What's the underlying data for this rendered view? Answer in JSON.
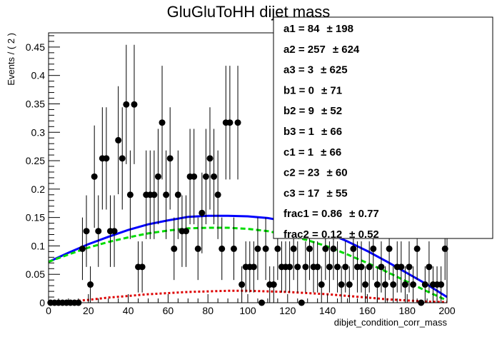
{
  "chart_data": {
    "type": "scatter",
    "title": "GluGluToHH dijet mass",
    "xlabel": "dibjet_condition_corr_mass",
    "ylabel": "Events / ( 2 )",
    "xlim": [
      0,
      200
    ],
    "ylim": [
      0,
      0.475
    ],
    "xticks": [
      0,
      20,
      40,
      60,
      80,
      100,
      120,
      140,
      160,
      180,
      200
    ],
    "yticks": [
      0,
      0.05,
      0.1,
      0.15,
      0.2,
      0.25,
      0.3,
      0.35,
      0.4,
      0.45
    ],
    "x_tick_labels": [
      "0",
      "20",
      "40",
      "60",
      "80",
      "100",
      "120",
      "140",
      "160",
      "180",
      "200"
    ],
    "y_tick_labels": [
      "0",
      "0.05",
      "0.1",
      "0.15",
      "0.2",
      "0.25",
      "0.3",
      "0.35",
      "0.4",
      "0.45"
    ],
    "grid": false,
    "legend": "none",
    "series": [
      {
        "type": "points-with-errors",
        "color": "#000000",
        "x": [
          1,
          3,
          5,
          7,
          9,
          11,
          13,
          15,
          17,
          19,
          21,
          23,
          25,
          27,
          29,
          31,
          33,
          35,
          37,
          39,
          41,
          43,
          45,
          47,
          49,
          51,
          53,
          55,
          57,
          59,
          61,
          63,
          65,
          67,
          69,
          71,
          73,
          75,
          77,
          79,
          81,
          83,
          85,
          87,
          89,
          91,
          93,
          95,
          97,
          99,
          101,
          103,
          105,
          107,
          109,
          111,
          113,
          115,
          117,
          119,
          121,
          123,
          125,
          127,
          129,
          131,
          133,
          135,
          137,
          139,
          141,
          143,
          145,
          147,
          149,
          151,
          153,
          155,
          157,
          159,
          161,
          163,
          165,
          167,
          169,
          171,
          173,
          175,
          177,
          179,
          181,
          183,
          185,
          187,
          189,
          191,
          193,
          195,
          197,
          199
        ],
        "y": [
          0,
          0,
          0,
          0,
          0,
          0,
          0,
          0,
          0.095,
          0.126,
          0.032,
          0.222,
          0.126,
          0.254,
          0.254,
          0.126,
          0.126,
          0.286,
          0.254,
          0.349,
          0.19,
          0.349,
          0.063,
          0.063,
          0.19,
          0.19,
          0.19,
          0.222,
          0.317,
          0.19,
          0.254,
          0.095,
          0.19,
          0.126,
          0.126,
          0.222,
          0.222,
          0.095,
          0.158,
          0.222,
          0.254,
          0.222,
          0.19,
          0.095,
          0.317,
          0.317,
          0.095,
          0.317,
          0.032,
          0.063,
          0.063,
          0.063,
          0.095,
          0.0,
          0.095,
          0.032,
          0.032,
          0.095,
          0.063,
          0.063,
          0.063,
          0.095,
          0.063,
          0.0,
          0.063,
          0.095,
          0.063,
          0.063,
          0.032,
          0.095,
          0.063,
          0.095,
          0.063,
          0.032,
          0.063,
          0.032,
          0.095,
          0.063,
          0.063,
          0.032,
          0.063,
          0.095,
          0.032,
          0.063,
          0.032,
          0.095,
          0.032,
          0.063,
          0.063,
          0.032,
          0.063,
          0.032,
          0.095,
          0.0,
          0.032,
          0.063,
          0.032,
          0.032,
          0.032,
          0.095
        ],
        "err": [
          0,
          0,
          0,
          0,
          0,
          0,
          0,
          0,
          0.055,
          0.063,
          0.032,
          0.09,
          0.063,
          0.09,
          0.09,
          0.063,
          0.063,
          0.095,
          0.09,
          0.105,
          0.078,
          0.105,
          0.045,
          0.045,
          0.078,
          0.078,
          0.078,
          0.084,
          0.1,
          0.078,
          0.09,
          0.055,
          0.078,
          0.063,
          0.063,
          0.084,
          0.084,
          0.055,
          0.071,
          0.084,
          0.09,
          0.084,
          0.078,
          0.055,
          0.1,
          0.1,
          0.055,
          0.1,
          0.032,
          0.045,
          0.045,
          0.045,
          0.055,
          0.0,
          0.055,
          0.032,
          0.032,
          0.055,
          0.045,
          0.045,
          0.045,
          0.055,
          0.045,
          0.0,
          0.045,
          0.055,
          0.045,
          0.045,
          0.032,
          0.055,
          0.045,
          0.055,
          0.045,
          0.032,
          0.045,
          0.032,
          0.055,
          0.045,
          0.045,
          0.032,
          0.045,
          0.055,
          0.032,
          0.045,
          0.032,
          0.055,
          0.032,
          0.045,
          0.045,
          0.032,
          0.045,
          0.032,
          0.055,
          0.0,
          0.032,
          0.045,
          0.032,
          0.032,
          0.032,
          0.055
        ]
      },
      {
        "type": "line",
        "color": "#0000ff",
        "style": "solid",
        "x": [
          0,
          10,
          20,
          30,
          40,
          50,
          60,
          70,
          80,
          90,
          100,
          110,
          120,
          130,
          140,
          150,
          160,
          170,
          180,
          190,
          200
        ],
        "y": [
          0.072,
          0.088,
          0.103,
          0.116,
          0.128,
          0.138,
          0.145,
          0.151,
          0.153,
          0.153,
          0.152,
          0.149,
          0.143,
          0.134,
          0.123,
          0.108,
          0.091,
          0.072,
          0.052,
          0.032,
          0.01
        ]
      },
      {
        "type": "line",
        "color": "#00dd00",
        "style": "dashed",
        "x": [
          0,
          10,
          20,
          30,
          40,
          50,
          60,
          70,
          80,
          90,
          100,
          110,
          120,
          130,
          140,
          150,
          160,
          170,
          180,
          190,
          200
        ],
        "y": [
          0.072,
          0.085,
          0.097,
          0.107,
          0.115,
          0.122,
          0.127,
          0.131,
          0.132,
          0.132,
          0.13,
          0.126,
          0.119,
          0.11,
          0.099,
          0.085,
          0.07,
          0.054,
          0.037,
          0.02,
          0.004
        ]
      },
      {
        "type": "line",
        "color": "#dd0000",
        "style": "dotted",
        "x": [
          0,
          10,
          20,
          30,
          40,
          50,
          60,
          70,
          80,
          90,
          100,
          110,
          120,
          130,
          140,
          150,
          160,
          170,
          180,
          190,
          200
        ],
        "y": [
          0.0,
          0.002,
          0.005,
          0.009,
          0.012,
          0.015,
          0.017,
          0.019,
          0.02,
          0.021,
          0.021,
          0.02,
          0.019,
          0.017,
          0.015,
          0.012,
          0.009,
          0.006,
          0.004,
          0.002,
          0.001
        ]
      }
    ]
  },
  "stats_box": {
    "lines": [
      {
        "name": "a1",
        "value": "84",
        "error": "198"
      },
      {
        "name": "a2",
        "value": "257",
        "error": "624"
      },
      {
        "name": "a3",
        "value": "3",
        "error": "625"
      },
      {
        "name": "b1",
        "value": "0",
        "error": "71"
      },
      {
        "name": "b2",
        "value": "9",
        "error": "52"
      },
      {
        "name": "b3",
        "value": "1",
        "error": "66"
      },
      {
        "name": "c1",
        "value": "1",
        "error": "66"
      },
      {
        "name": "c2",
        "value": "23",
        "error": "60"
      },
      {
        "name": "c3",
        "value": "17",
        "error": "55"
      },
      {
        "name": "frac1",
        "value": "0.86",
        "error": "0.77"
      },
      {
        "name": "frac2",
        "value": "0.12",
        "error": "0.52"
      }
    ]
  }
}
